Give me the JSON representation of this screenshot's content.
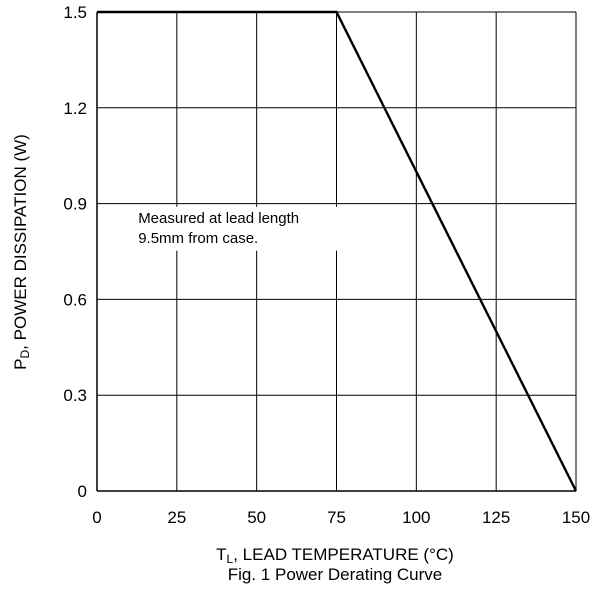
{
  "chart_data": {
    "type": "line",
    "title": "",
    "caption": "Fig. 1 Power Derating Curve",
    "xlabel": {
      "main": "T",
      "sub": "L",
      "rest": ", LEAD TEMPERATURE (°C)"
    },
    "ylabel": {
      "main": "P",
      "sub": "D",
      "rest": ", POWER DISSIPATION (W)"
    },
    "xlim": [
      0,
      150
    ],
    "ylim": [
      0,
      1.5
    ],
    "xticks": [
      {
        "value": 0,
        "label": "0"
      },
      {
        "value": 25,
        "label": "25"
      },
      {
        "value": 50,
        "label": "50"
      },
      {
        "value": 75,
        "label": "75"
      },
      {
        "value": 100,
        "label": "100"
      },
      {
        "value": 125,
        "label": "125"
      },
      {
        "value": 150,
        "label": "150"
      }
    ],
    "yticks": [
      {
        "value": 0,
        "label": "0"
      },
      {
        "value": 0.3,
        "label": "0.3"
      },
      {
        "value": 0.6,
        "label": "0.6"
      },
      {
        "value": 0.9,
        "label": "0.9"
      },
      {
        "value": 1.2,
        "label": "1.2"
      },
      {
        "value": 1.5,
        "label": "1.5"
      }
    ],
    "grid": true,
    "series": [
      {
        "x": [
          0,
          75,
          150
        ],
        "y": [
          1.5,
          1.5,
          0
        ],
        "color": "#000000"
      }
    ],
    "annotation": {
      "lines": [
        "Measured at lead length",
        "9.5mm from case."
      ],
      "x": 1,
      "y": 0.84
    }
  }
}
